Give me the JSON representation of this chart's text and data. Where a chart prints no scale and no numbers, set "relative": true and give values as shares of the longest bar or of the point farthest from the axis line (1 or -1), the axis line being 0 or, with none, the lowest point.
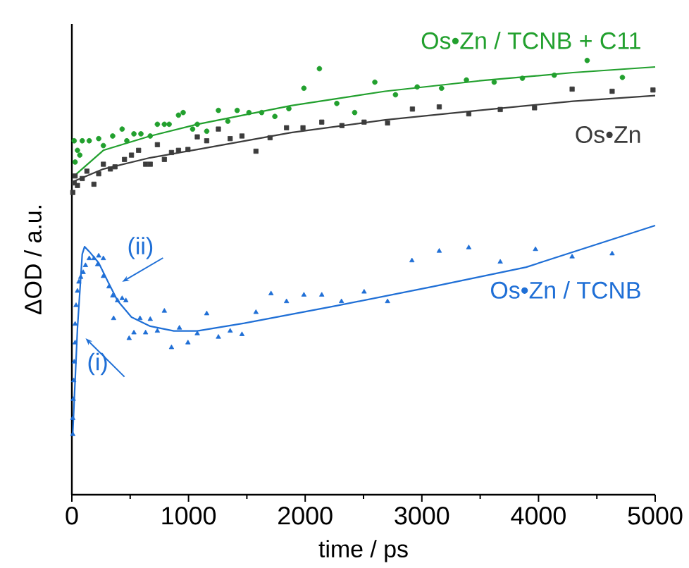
{
  "chart_data": {
    "type": "scatter",
    "relative": true,
    "xlabel": "time / ps",
    "ylabel": "ΔOD / a.u.",
    "xlim": [
      0,
      5000
    ],
    "xticks": [
      0,
      1000,
      2000,
      3000,
      4000,
      5000
    ],
    "annotations": [
      "(i)",
      "(ii)"
    ],
    "series": [
      {
        "name": "Os•Zn / TCNB + C11",
        "marker": "circle",
        "color": "#22a02e",
        "x": [
          20,
          48,
          28,
          89,
          68,
          149,
          230,
          270,
          350,
          431,
          471,
          532,
          592,
          672,
          733,
          793,
          834,
          914,
          954,
          1035,
          1075,
          1156,
          1256,
          1337,
          1417,
          1518,
          1627,
          1740,
          1860,
          1989,
          2122,
          2271,
          2424,
          2597,
          2774,
          2960,
          3169,
          3382,
          3620,
          3862,
          4135,
          4417,
          4719
        ],
        "values": [
          0.815,
          0.793,
          0.766,
          0.815,
          0.782,
          0.815,
          0.82,
          0.804,
          0.826,
          0.842,
          0.815,
          0.831,
          0.831,
          0.826,
          0.853,
          0.853,
          0.853,
          0.874,
          0.88,
          0.842,
          0.853,
          0.837,
          0.885,
          0.86,
          0.885,
          0.88,
          0.88,
          0.871,
          0.889,
          0.936,
          0.981,
          0.901,
          0.88,
          0.95,
          0.921,
          0.939,
          0.936,
          0.955,
          0.95,
          0.959,
          0.966,
          1,
          0.961
        ]
      },
      {
        "type": "line",
        "color": "#22a02e",
        "x": [
          20,
          270,
          672,
          1075,
          1880,
          2686,
          3491,
          4296,
          5000
        ],
        "values": [
          0.734,
          0.793,
          0.826,
          0.853,
          0.896,
          0.929,
          0.953,
          0.972,
          0.985
        ]
      },
      {
        "name": "Os•Zn",
        "marker": "square",
        "color": "#3c3c3c",
        "x": [
          8,
          20,
          28,
          48,
          89,
          129,
          189,
          230,
          270,
          330,
          370,
          451,
          511,
          572,
          632,
          672,
          733,
          793,
          854,
          914,
          995,
          1075,
          1156,
          1256,
          1357,
          1458,
          1578,
          1699,
          1840,
          1981,
          2142,
          2315,
          2505,
          2706,
          2919,
          3149,
          3402,
          3672,
          3966,
          4288,
          4631,
          4981
        ],
        "values": [
          0.696,
          0.718,
          0.734,
          0.712,
          0.728,
          0.745,
          0.715,
          0.739,
          0.761,
          0.75,
          0.755,
          0.772,
          0.782,
          0.793,
          0.761,
          0.761,
          0.806,
          0.772,
          0.788,
          0.793,
          0.795,
          0.824,
          0.815,
          0.842,
          0.82,
          0.826,
          0.791,
          0.822,
          0.845,
          0.845,
          0.858,
          0.85,
          0.858,
          0.856,
          0.888,
          0.893,
          0.877,
          0.887,
          0.891,
          0.934,
          0.929,
          0.932
        ]
      },
      {
        "type": "line",
        "color": "#3c3c3c",
        "x": [
          20,
          270,
          672,
          1075,
          1880,
          2686,
          3491,
          4296,
          5000
        ],
        "values": [
          0.722,
          0.75,
          0.776,
          0.795,
          0.834,
          0.863,
          0.885,
          0.906,
          0.919
        ]
      },
      {
        "name": "Os•Zn / TCNB",
        "marker": "triangle",
        "color": "#1f6fd6",
        "x": [
          8,
          8,
          12,
          16,
          20,
          28,
          28,
          36,
          48,
          60,
          76,
          97,
          117,
          149,
          189,
          230,
          270,
          221,
          270,
          318,
          350,
          391,
          431,
          463,
          358,
          491,
          532,
          584,
          632,
          672,
          733,
          793,
          854,
          922,
          995,
          1075,
          1156,
          1256,
          1357,
          1458,
          1578,
          1707,
          1840,
          1989,
          2142,
          2311,
          2505,
          2706,
          2915,
          3149,
          3402,
          3672,
          3974,
          4288,
          4631
        ],
        "values": [
          0.139,
          0.176,
          0.22,
          0.263,
          0.306,
          0.35,
          0.393,
          0.436,
          0.469,
          0.49,
          0.501,
          0.512,
          0.528,
          0.544,
          0.544,
          0.55,
          0.544,
          0.53,
          0.503,
          0.479,
          0.458,
          0.447,
          0.452,
          0.447,
          0.406,
          0.36,
          0.373,
          0.406,
          0.373,
          0.404,
          0.377,
          0.423,
          0.339,
          0.384,
          0.35,
          0.371,
          0.417,
          0.363,
          0.377,
          0.369,
          0.42,
          0.463,
          0.445,
          0.46,
          0.46,
          0.445,
          0.467,
          0.445,
          0.539,
          0.561,
          0.569,
          0.536,
          0.565,
          0.548,
          0.555
        ]
      },
      {
        "type": "line",
        "color": "#1f6fd6",
        "x": [
          8,
          48,
          89,
          109,
          149,
          230,
          310,
          391,
          511,
          672,
          874,
          1075,
          1478,
          2283,
          3088,
          3894,
          5000
        ],
        "values": [
          0.143,
          0.383,
          0.554,
          0.571,
          0.56,
          0.534,
          0.49,
          0.447,
          0.409,
          0.388,
          0.377,
          0.377,
          0.395,
          0.436,
          0.479,
          0.524,
          0.62
        ]
      }
    ]
  }
}
